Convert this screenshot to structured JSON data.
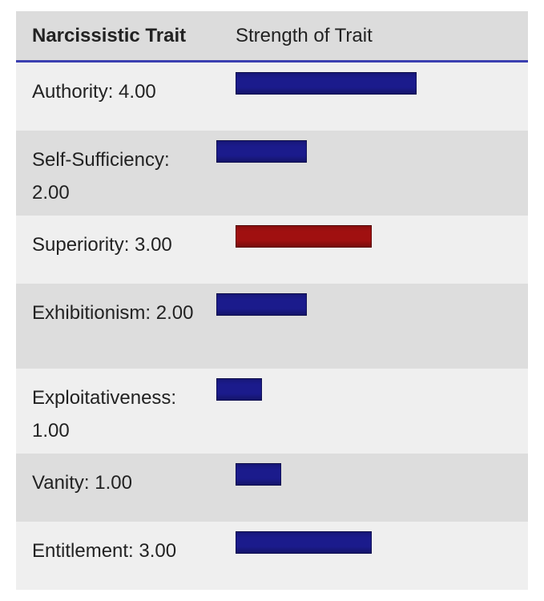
{
  "chart_data": {
    "type": "bar",
    "orientation": "horizontal",
    "columns": [
      "Narcissistic Trait",
      "Strength of Trait"
    ],
    "categories": [
      "Authority",
      "Self-Sufficiency",
      "Superiority",
      "Exhibitionism",
      "Exploitativeness",
      "Vanity",
      "Entitlement"
    ],
    "values": [
      4,
      2,
      3,
      2,
      1,
      1,
      3
    ],
    "max_value": 8,
    "rows": [
      {
        "label": "Authority: 4.00",
        "value": 4,
        "color": "#1b1b8c",
        "lines": 1
      },
      {
        "label": "Self-Sufficiency: 2.00",
        "value": 2,
        "color": "#1b1b8c",
        "lines": 2
      },
      {
        "label": "Superiority: 3.00",
        "value": 3,
        "color": "#a01010",
        "lines": 1
      },
      {
        "label": "Exhibitionism: 2.00",
        "value": 2,
        "color": "#1b1b8c",
        "lines": 2
      },
      {
        "label": "Exploitativeness: 1.00",
        "value": 1,
        "color": "#1b1b8c",
        "lines": 2
      },
      {
        "label": "Vanity: 1.00",
        "value": 1,
        "color": "#1b1b8c",
        "lines": 1
      },
      {
        "label": "Entitlement: 3.00",
        "value": 3,
        "color": "#1b1b8c",
        "lines": 1
      }
    ],
    "colors": {
      "default": "#1b1b8c",
      "highlight": "#a01010",
      "header_rule": "#3b3fb0"
    }
  }
}
